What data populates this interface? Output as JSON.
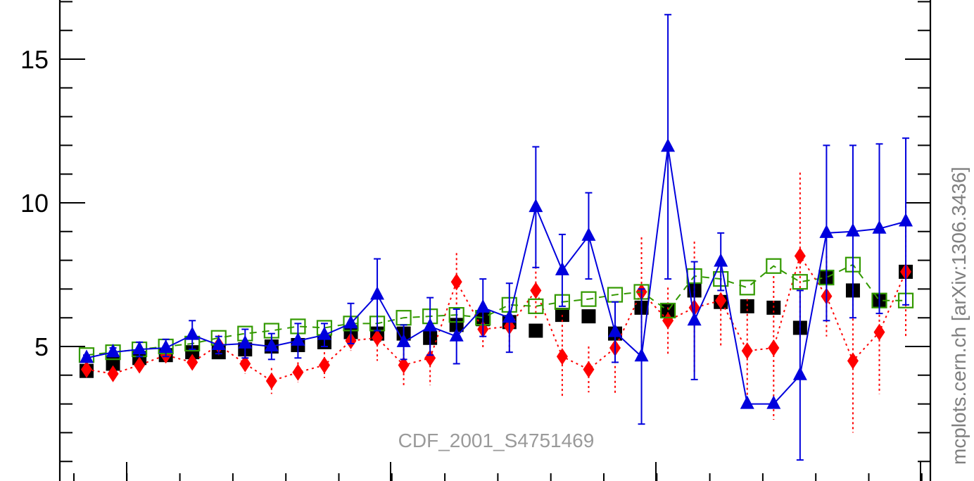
{
  "chart_data": {
    "type": "scatter",
    "watermark": "CDF_2001_S4751469",
    "side_label": "mcplots.cern.ch [arXiv:1306.3436]",
    "yticks": [
      "5",
      "10",
      "15"
    ],
    "ylim": [
      0,
      17
    ],
    "xlim": [
      0,
      32.5
    ],
    "grid": false,
    "colors": {
      "data": "#000000",
      "mc1": "#ff0000",
      "mc2": "#339900",
      "mc3": "#0000dd"
    },
    "x": [
      0.5,
      1.5,
      2.5,
      3.5,
      4.5,
      5.5,
      6.5,
      7.5,
      8.5,
      9.5,
      10.5,
      11.5,
      12.5,
      13.5,
      14.5,
      15.5,
      16.5,
      17.5,
      18.5,
      19.5,
      20.5,
      21.5,
      22.5,
      23.5,
      24.5,
      25.5,
      26.5,
      27.5,
      28.5,
      29.5,
      30.5,
      31.5
    ],
    "series": [
      {
        "marker": "filled-square",
        "line": "none",
        "color": "#000000",
        "values": [
          4.15,
          4.4,
          4.6,
          4.7,
          4.8,
          4.8,
          4.9,
          5.0,
          5.05,
          5.15,
          5.5,
          5.45,
          5.45,
          5.3,
          5.75,
          5.95,
          5.85,
          5.55,
          6.1,
          6.05,
          5.45,
          6.35,
          6.25,
          6.95,
          6.55,
          6.4,
          6.35,
          5.65,
          7.4,
          6.95,
          6.6,
          7.6
        ],
        "err": [
          0.1,
          0.1,
          0.1,
          0.1,
          0.1,
          0.1,
          0.1,
          0.1,
          0.1,
          0.1,
          0.1,
          0.1,
          0.1,
          0.1,
          0.1,
          0.1,
          0.1,
          0.1,
          0.1,
          0.1,
          0.1,
          0.1,
          0.1,
          0.1,
          0.1,
          0.1,
          0.1,
          0.1,
          0.1,
          0.1,
          0.1,
          0.1
        ]
      },
      {
        "marker": "filled-diamond",
        "line": "dotted",
        "color": "#ff0000",
        "values": [
          4.2,
          4.05,
          4.35,
          4.7,
          4.45,
          5.05,
          4.4,
          3.8,
          4.1,
          4.35,
          5.2,
          5.3,
          4.35,
          4.6,
          7.25,
          5.6,
          5.7,
          6.95,
          4.65,
          4.2,
          4.95,
          6.9,
          5.9,
          6.35,
          6.6,
          4.85,
          4.95,
          8.15,
          6.75,
          4.5,
          5.5,
          7.6
        ],
        "err": [
          0.15,
          0.15,
          0.2,
          0.25,
          0.25,
          0.35,
          0.35,
          0.45,
          0.35,
          0.45,
          0.35,
          0.8,
          0.75,
          0.95,
          1.0,
          0.65,
          0.9,
          1.0,
          1.45,
          0.8,
          1.6,
          1.9,
          1.15,
          2.3,
          1.6,
          1.8,
          2.5,
          2.9,
          1.4,
          2.5,
          2.15,
          2.3
        ]
      },
      {
        "marker": "open-square",
        "line": "dashed",
        "color": "#339900",
        "values": [
          4.7,
          4.8,
          4.9,
          5.0,
          5.1,
          5.3,
          5.45,
          5.55,
          5.7,
          5.65,
          5.8,
          5.8,
          6.0,
          6.05,
          6.1,
          6.0,
          6.45,
          6.4,
          6.55,
          6.65,
          6.8,
          6.9,
          6.25,
          7.45,
          7.35,
          7.05,
          7.8,
          7.25,
          7.4,
          7.85,
          6.6,
          6.6
        ]
      },
      {
        "marker": "filled-triangle",
        "line": "solid",
        "color": "#0000dd",
        "values": [
          4.6,
          4.8,
          4.9,
          4.95,
          5.4,
          5.05,
          5.1,
          5.0,
          5.2,
          5.4,
          5.8,
          6.8,
          5.15,
          5.7,
          5.35,
          6.35,
          6.0,
          9.85,
          7.65,
          8.85,
          5.5,
          4.65,
          11.95,
          5.9,
          7.95,
          3.0,
          3.0,
          4.0,
          8.95,
          9.0,
          9.1,
          9.35
        ],
        "err": [
          0.1,
          0.15,
          0.25,
          0.3,
          0.5,
          0.3,
          0.5,
          0.45,
          0.6,
          0.4,
          0.7,
          1.25,
          0.6,
          1.0,
          0.95,
          1.0,
          1.2,
          2.1,
          1.25,
          1.5,
          1.05,
          2.35,
          4.6,
          2.05,
          1.0,
          0,
          0,
          2.95,
          3.05,
          3.0,
          2.95,
          2.9
        ]
      }
    ]
  }
}
